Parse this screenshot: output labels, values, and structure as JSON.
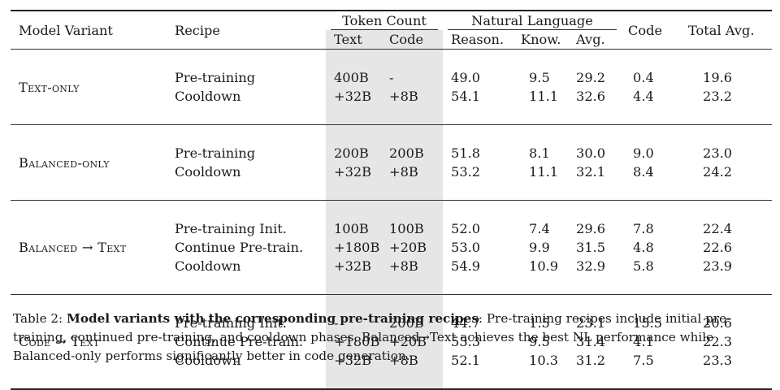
{
  "headers": {
    "model_variant": "Model Variant",
    "recipe": "Recipe",
    "token_count": "Token Count",
    "natural_language": "Natural Language",
    "code": "Code",
    "total_avg": "Total Avg.",
    "text": "Text",
    "code_sub": "Code",
    "reason": "Reason.",
    "know": "Know.",
    "avg": "Avg."
  },
  "groups": [
    {
      "model": "Text-only",
      "rows": [
        {
          "recipe": "Pre-training",
          "text": "400B",
          "code_tokens": "-",
          "reason": "49.0",
          "know": "9.5",
          "avg": "29.2",
          "code": "0.4",
          "total": "19.6"
        },
        {
          "recipe": "Cooldown",
          "text": "+32B",
          "code_tokens": "+8B",
          "reason": "54.1",
          "know": "11.1",
          "avg": "32.6",
          "code": "4.4",
          "total": "23.2"
        }
      ]
    },
    {
      "model": "Balanced-only",
      "rows": [
        {
          "recipe": "Pre-training",
          "text": "200B",
          "code_tokens": "200B",
          "reason": "51.8",
          "know": "8.1",
          "avg": "30.0",
          "code": "9.0",
          "total": "23.0"
        },
        {
          "recipe": "Cooldown",
          "text": "+32B",
          "code_tokens": "+8B",
          "reason": "53.2",
          "know": "11.1",
          "avg": "32.1",
          "code": "8.4",
          "total": "24.2"
        }
      ]
    },
    {
      "model": "Balanced → Text",
      "rows": [
        {
          "recipe": "Pre-training Init.",
          "text": "100B",
          "code_tokens": "100B",
          "reason": "52.0",
          "know": "7.4",
          "avg": "29.6",
          "code": "7.8",
          "total": "22.4"
        },
        {
          "recipe": "Continue Pre-train.",
          "text": "+180B",
          "code_tokens": "+20B",
          "reason": "53.0",
          "know": "9.9",
          "avg": "31.5",
          "code": "4.8",
          "total": "22.6"
        },
        {
          "recipe": "Cooldown",
          "text": "+32B",
          "code_tokens": "+8B",
          "reason": "54.9",
          "know": "10.9",
          "avg": "32.9",
          "code": "5.8",
          "total": "23.9"
        }
      ]
    },
    {
      "model": "Code → Text",
      "rows": [
        {
          "recipe": "Pre-training Init.",
          "text": "-",
          "code_tokens": "200B",
          "reason": "44.7",
          "know": "1.5",
          "avg": "23.1",
          "code": "15.5",
          "total": "20.6"
        },
        {
          "recipe": "Continue Pre-train.",
          "text": "+180B",
          "code_tokens": "+20B",
          "reason": "53.3",
          "know": "9.5",
          "avg": "31.4",
          "code": "4.1",
          "total": "22.3"
        },
        {
          "recipe": "Cooldown",
          "text": "+32B",
          "code_tokens": "+8B",
          "reason": "52.1",
          "know": "10.3",
          "avg": "31.2",
          "code": "7.5",
          "total": "23.3"
        }
      ]
    }
  ],
  "caption": {
    "label": "Table 2:",
    "bold_title": "Model variants with the corresponding pre-training recipes",
    "body": ": Pre-training recipes include initial pre-training, continued pre-training, and cooldown phases. Balanced→Text achieves the best NL performance while Balanced-only performs significantly better in code generation."
  },
  "colors": {
    "shade": "#e6e6e6",
    "text": "#1a1a1a"
  }
}
